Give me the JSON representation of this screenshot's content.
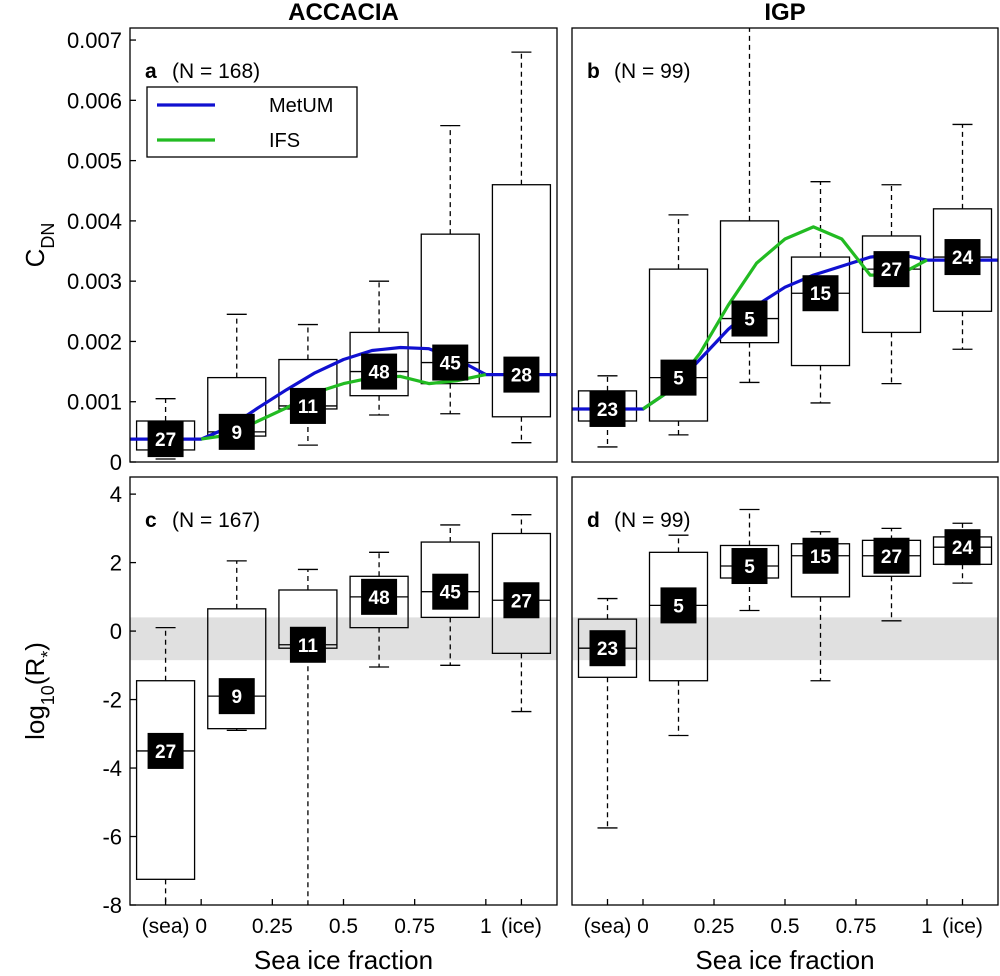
{
  "chart_data": [
    {
      "type": "box",
      "title": "ACCACIA",
      "panel_label": "a",
      "annotation": "(N = 168)",
      "ylabel": [
        {
          "text": "C"
        },
        {
          "text": "DN",
          "sub": true
        }
      ],
      "xlim": [
        -0.25,
        1.25
      ],
      "ylim": [
        0,
        0.0072
      ],
      "yticks": [
        0,
        0.001,
        0.002,
        0.003,
        0.004,
        0.005,
        0.006,
        0.007
      ],
      "legend": "upper left",
      "boxes": {
        "x": [
          -0.125,
          0.125,
          0.375,
          0.625,
          0.875,
          1.125
        ],
        "whisker_low": [
          5e-05,
          0.00025,
          0.00028,
          0.00078,
          0.0008,
          0.00032
        ],
        "q1": [
          0.0002,
          0.00043,
          0.00088,
          0.0011,
          0.0013,
          0.00075
        ],
        "median": [
          0.00038,
          0.0005,
          0.00093,
          0.0015,
          0.00165,
          0.00145
        ],
        "q3": [
          0.00068,
          0.0014,
          0.0017,
          0.00215,
          0.00378,
          0.0046
        ],
        "whisker_high": [
          0.00105,
          0.00245,
          0.00228,
          0.003,
          0.00558,
          0.0068
        ],
        "counts": [
          27,
          9,
          11,
          48,
          45,
          28
        ]
      },
      "series": [
        {
          "name": "MetUM",
          "color": "#1010d0",
          "x": [
            -0.25,
            0,
            0.1,
            0.2,
            0.3,
            0.4,
            0.5,
            0.6,
            0.7,
            0.8,
            0.9,
            1,
            1.25
          ],
          "values": [
            0.00038,
            0.00038,
            0.00058,
            0.0009,
            0.0012,
            0.00148,
            0.0017,
            0.00185,
            0.0019,
            0.00188,
            0.0017,
            0.00145,
            0.00145
          ]
        },
        {
          "name": "IFS",
          "color": "#22bb22",
          "x": [
            0,
            0.1,
            0.2,
            0.3,
            0.4,
            0.5,
            0.6,
            0.7,
            0.8,
            0.9,
            1
          ],
          "values": [
            0.00038,
            0.00045,
            0.00068,
            0.0009,
            0.00115,
            0.0013,
            0.0014,
            0.00142,
            0.0013,
            0.00135,
            0.00145
          ]
        }
      ]
    },
    {
      "type": "box",
      "title": "IGP",
      "panel_label": "b",
      "annotation": "(N = 99)",
      "xlim": [
        -0.25,
        1.25
      ],
      "ylim": [
        0,
        0.0072
      ],
      "boxes": {
        "x": [
          -0.125,
          0.125,
          0.375,
          0.625,
          0.875,
          1.125
        ],
        "whisker_low": [
          0.00025,
          0.00045,
          0.00132,
          0.00098,
          0.0013,
          0.00187
        ],
        "q1": [
          0.00068,
          0.00068,
          0.00198,
          0.0016,
          0.00215,
          0.0025
        ],
        "median": [
          0.00088,
          0.0014,
          0.00238,
          0.0028,
          0.0032,
          0.0034
        ],
        "q3": [
          0.00118,
          0.0032,
          0.004,
          0.0034,
          0.00375,
          0.0042
        ],
        "whisker_high": [
          0.00143,
          0.0041,
          0.0075,
          0.00465,
          0.0046,
          0.0056
        ],
        "counts": [
          23,
          5,
          5,
          15,
          27,
          24
        ]
      },
      "series": [
        {
          "name": "MetUM",
          "color": "#1010d0",
          "x": [
            -0.25,
            0,
            0.1,
            0.2,
            0.3,
            0.4,
            0.5,
            0.6,
            0.7,
            0.8,
            0.9,
            1,
            1.25
          ],
          "values": [
            0.00088,
            0.00088,
            0.0012,
            0.0017,
            0.0022,
            0.0026,
            0.0029,
            0.0031,
            0.00325,
            0.0034,
            0.00345,
            0.00335,
            0.00335
          ]
        },
        {
          "name": "IFS",
          "color": "#22bb22",
          "x": [
            0,
            0.1,
            0.2,
            0.3,
            0.4,
            0.5,
            0.6,
            0.7,
            0.8,
            0.9,
            1
          ],
          "values": [
            0.00088,
            0.0012,
            0.0018,
            0.0026,
            0.0033,
            0.0037,
            0.0039,
            0.0037,
            0.0031,
            0.0031,
            0.00335
          ]
        }
      ]
    },
    {
      "type": "box",
      "panel_label": "c",
      "annotation": "(N = 167)",
      "ylabel": [
        {
          "text": "log"
        },
        {
          "text": "10",
          "sub": true
        },
        {
          "text": "(R"
        },
        {
          "text": "*",
          "sub": true
        },
        {
          "text": ")"
        }
      ],
      "xlabel": "Sea ice fraction",
      "xlim": [
        -0.25,
        1.25
      ],
      "ylim": [
        -8,
        4.5
      ],
      "xticks": [
        {
          "value": -0.125,
          "label": "(sea)"
        },
        0,
        0.25,
        0.5,
        0.75,
        1,
        {
          "value": 1.125,
          "label": "(ice)"
        }
      ],
      "yticks": [
        -8,
        -6,
        -4,
        -2,
        0,
        2,
        4
      ],
      "shade": [
        -0.85,
        0.4
      ],
      "shade_color": "#e0e0e0",
      "boxes": {
        "x": [
          -0.125,
          0.125,
          0.375,
          0.625,
          0.875,
          1.125
        ],
        "whisker_low": [
          -8.5,
          -2.9,
          -9,
          -1.05,
          -1.0,
          -2.35
        ],
        "q1": [
          -7.25,
          -2.85,
          -0.5,
          0.1,
          0.4,
          -0.65
        ],
        "median": [
          -3.5,
          -1.9,
          -0.4,
          1.0,
          1.15,
          0.9
        ],
        "q3": [
          -1.45,
          0.65,
          1.2,
          1.6,
          2.6,
          2.85
        ],
        "whisker_high": [
          0.1,
          2.05,
          1.8,
          2.3,
          3.1,
          3.4
        ],
        "counts": [
          27,
          9,
          11,
          48,
          45,
          27
        ]
      }
    },
    {
      "type": "box",
      "panel_label": "d",
      "annotation": "(N = 99)",
      "xlabel": "Sea ice fraction",
      "xlim": [
        -0.25,
        1.25
      ],
      "ylim": [
        -8,
        4.5
      ],
      "xticks": [
        {
          "value": -0.125,
          "label": "(sea)"
        },
        0,
        0.25,
        0.5,
        0.75,
        1,
        {
          "value": 1.125,
          "label": "(ice)"
        }
      ],
      "shade": [
        -0.85,
        0.4
      ],
      "shade_color": "#e0e0e0",
      "boxes": {
        "x": [
          -0.125,
          0.125,
          0.375,
          0.625,
          0.875,
          1.125
        ],
        "whisker_low": [
          -5.75,
          -3.05,
          0.6,
          -1.45,
          0.3,
          1.4
        ],
        "q1": [
          -1.35,
          -1.45,
          1.55,
          1.0,
          1.6,
          1.95
        ],
        "median": [
          -0.5,
          0.75,
          1.9,
          2.2,
          2.2,
          2.45
        ],
        "q3": [
          0.35,
          2.3,
          2.5,
          2.55,
          2.65,
          2.75
        ],
        "whisker_high": [
          0.95,
          2.8,
          3.55,
          2.9,
          3.0,
          3.15
        ],
        "counts": [
          23,
          5,
          5,
          15,
          27,
          24
        ]
      }
    }
  ]
}
